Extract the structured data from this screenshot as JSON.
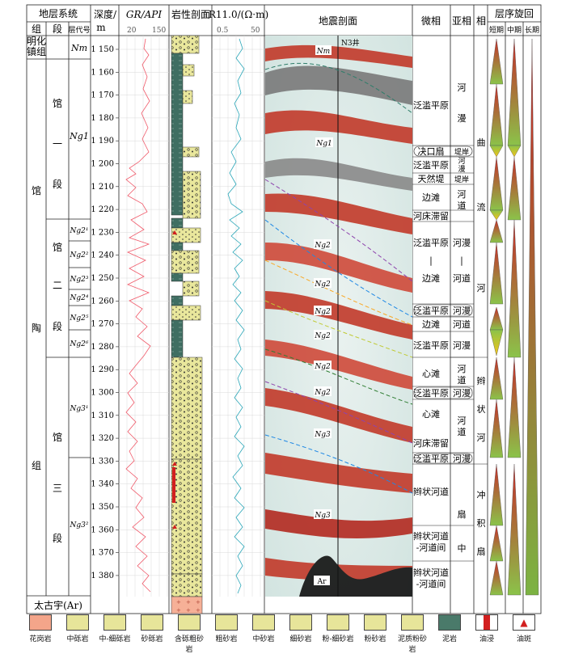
{
  "headers": {
    "strat_system": "地层系统",
    "group": "组",
    "member": "段",
    "layer_code": "层代号",
    "depth": "深度/",
    "depth_unit": "m",
    "gr_title": "GR/API",
    "gr_min": "20",
    "gr_max": "150",
    "lith_title": "岩性剖面",
    "r_title": "R11.0/(Ω·m)",
    "r_min": "0.5",
    "r_max": "50",
    "seismic_title": "地震剖面",
    "microfacies": "微相",
    "subfacies": "亚相",
    "facies": "相",
    "cycle_title": "层序旋回",
    "cycle_short": "短期",
    "cycle_mid": "中期",
    "cycle_long": "长期"
  },
  "groups": [
    {
      "name": "明化镇组",
      "chars": [
        "明化",
        "镇组"
      ]
    },
    {
      "name": "馆陶组",
      "chars": [
        "馆",
        "陶",
        "组"
      ]
    },
    {
      "name": "太古宇(Ar)"
    }
  ],
  "members": [
    {
      "chars": [
        "馆",
        "一",
        "段"
      ]
    },
    {
      "chars": [
        "馆",
        "二",
        "段"
      ]
    },
    {
      "chars": [
        "馆",
        "三",
        "段"
      ]
    }
  ],
  "layers": [
    "Nm",
    "Ng1",
    "Ng2¹",
    "Ng2²",
    "Ng2³",
    "Ng2⁴",
    "Ng2⁵",
    "Ng2⁶",
    "Ng3¹",
    "Ng3²"
  ],
  "depth_ticks": [
    "1 150",
    "1 160",
    "1 170",
    "1 180",
    "1 190",
    "1 200",
    "1 210",
    "1 220",
    "1 230",
    "1 240",
    "1 250",
    "1 260",
    "1 270",
    "1 280",
    "1 290",
    "1 300",
    "1 310",
    "1 320",
    "1 330",
    "1 340",
    "1 350",
    "1 360",
    "1 370",
    "1 380"
  ],
  "seismic_labels": {
    "nm": "Nm",
    "well": "N3井",
    "ar": "Ar",
    "ng": [
      "Ng1",
      "Ng2",
      "Ng2",
      "Ng2",
      "Ng2",
      "Ng2",
      "Ng2",
      "Ng3",
      "Ng3"
    ]
  },
  "microfacies": [
    "泛滥平原",
    "决口扇",
    "泛滥平原",
    "天然堤",
    "边滩",
    "河床滞留",
    "泛滥平原",
    "|",
    "边滩",
    "泛滥平原",
    "边滩",
    "泛滥平原",
    "心滩",
    "泛滥平原",
    "心滩",
    "河床滞留",
    "泛滥平原",
    "辫状河道",
    "辫状河道",
    "-河道间",
    "辫状河道",
    "-河道间"
  ],
  "subfacies": [
    "河",
    "漫",
    "堤岸",
    "河",
    "漫",
    "堤岸",
    "河",
    "道",
    "河漫",
    "|",
    "河道",
    "河漫",
    "河道",
    "河漫",
    "河",
    "道",
    "河漫",
    "河",
    "道",
    "河漫",
    "扇",
    "中"
  ],
  "facies": [
    "曲",
    "流",
    "河",
    "辫",
    "状",
    "河",
    "冲",
    "积",
    "扇"
  ],
  "legend": [
    {
      "label": "花岗岩",
      "color": "#f4a58a"
    },
    {
      "label": "中砾岩",
      "color": "#e7e59a"
    },
    {
      "label": "中-细砾岩",
      "color": "#e7e59a"
    },
    {
      "label": "砂砾岩",
      "color": "#e7e59a"
    },
    {
      "label": "含砾粗砂岩",
      "color": "#e7e59a"
    },
    {
      "label": "粗砂岩",
      "color": "#e7e59a"
    },
    {
      "label": "中砂岩",
      "color": "#e7e59a"
    },
    {
      "label": "细砂岩",
      "color": "#e7e59a"
    },
    {
      "label": "粉-细砂岩",
      "color": "#e7e59a"
    },
    {
      "label": "粉砂岩",
      "color": "#e7e59a"
    },
    {
      "label": "泥质粉砂岩",
      "color": "#e7e59a"
    },
    {
      "label": "泥岩",
      "color": "#4a7a6a"
    },
    {
      "label": "油浸",
      "color": "#ffffff"
    },
    {
      "label": "油斑",
      "color": "#ffffff"
    }
  ]
}
